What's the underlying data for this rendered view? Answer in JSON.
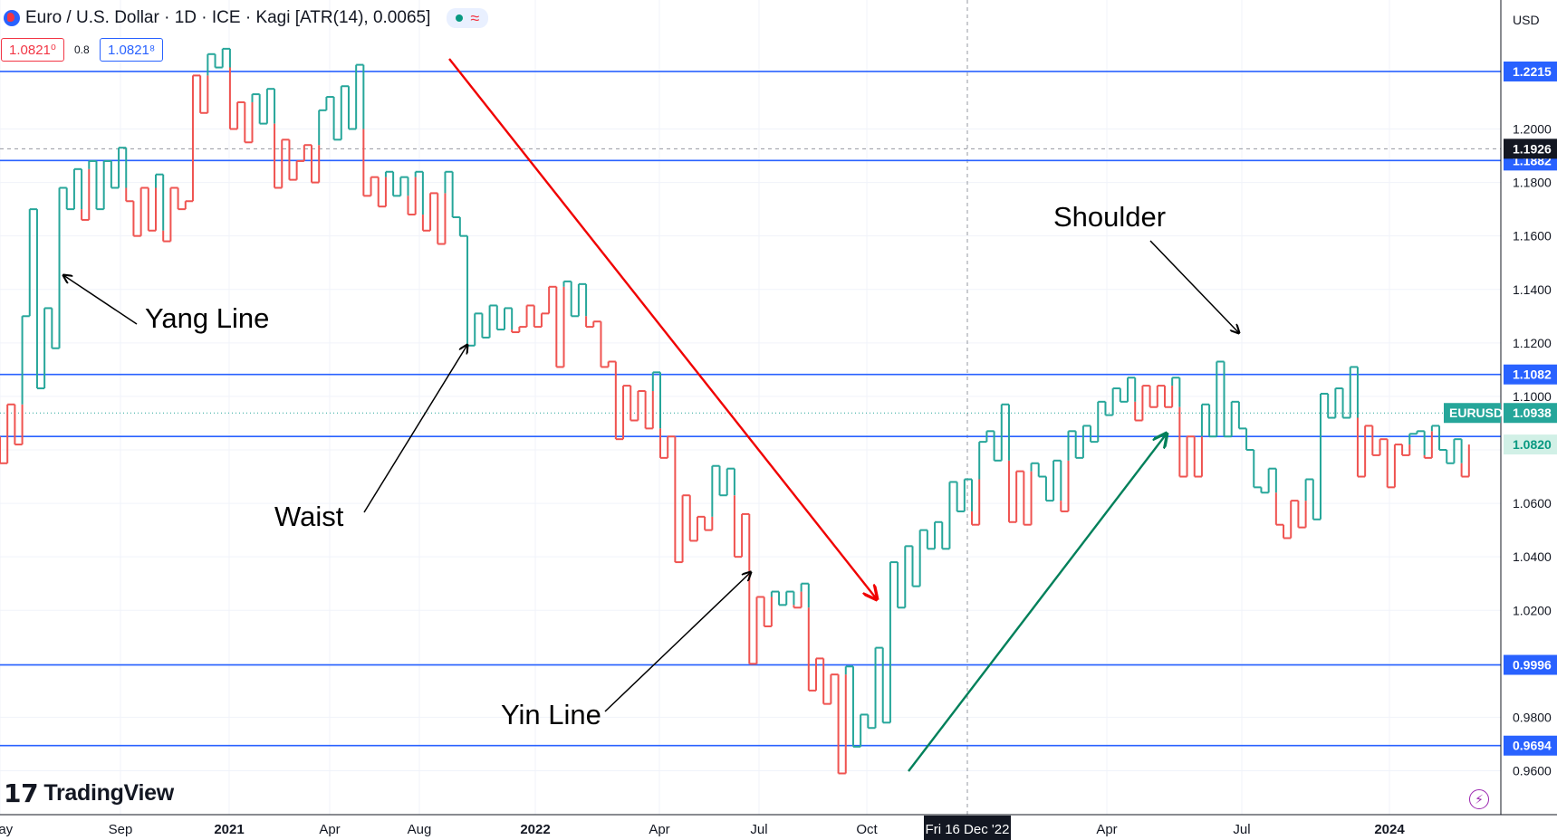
{
  "header": {
    "symbol_title": "Euro / U.S. Dollar · 1D · ICE · Kagi [ATR(14), 0.0065]",
    "approx_glyph": "≈",
    "sell_price": "1.0821⁰",
    "spread": "0.8",
    "buy_price": "1.0821⁸"
  },
  "brand": {
    "name": "TradingView",
    "mark": "17"
  },
  "colors": {
    "yang": "#26a69a",
    "yin": "#ef5350",
    "level": "#2962ff",
    "down_arrow": "#f00000",
    "up_arrow": "#00805a",
    "axis_text": "#131722",
    "grid": "#f0f3fa"
  },
  "chart_data": {
    "type": "kagi",
    "currency_label": "USD",
    "ylim": [
      0.95,
      1.235
    ],
    "y_ticks": [
      0.96,
      0.98,
      1.0,
      1.02,
      1.04,
      1.06,
      1.08,
      1.1,
      1.12,
      1.14,
      1.16,
      1.18,
      1.2
    ],
    "y_tick_labels": [
      "0.9600",
      "0.9800",
      "1.0000",
      "1.0200",
      "1.0400",
      "1.0600",
      "1.0800",
      "1.1000",
      "1.1200",
      "1.1400",
      "1.1600",
      "1.1800",
      "1.2000"
    ],
    "x_labels": [
      "May",
      "Sep",
      "2021",
      "Apr",
      "Aug",
      "2022",
      "Apr",
      "Jul",
      "Oct",
      "Apr",
      "Jul",
      "2024"
    ],
    "x_labels_bold": [
      false,
      false,
      true,
      false,
      false,
      true,
      false,
      false,
      false,
      false,
      false,
      true
    ],
    "crosshair_date": "Fri 16 Dec '22",
    "crosshair_price": "1.1926",
    "horizontal_levels": [
      1.2215,
      1.1882,
      1.1082,
      1.085,
      0.9996,
      0.9694
    ],
    "level_labels": [
      "1.2215",
      "1.1882",
      "1.1082",
      "",
      "0.9996",
      "0.9694"
    ],
    "last_price": {
      "symbol": "EURUSD",
      "value": "1.0938",
      "y": 1.0938
    },
    "bid_price": {
      "value": "1.0820",
      "y": 1.082
    },
    "kagi_values": [
      1.085,
      1.075,
      1.097,
      1.082,
      1.13,
      1.17,
      1.103,
      1.133,
      1.118,
      1.178,
      1.17,
      1.185,
      1.166,
      1.188,
      1.17,
      1.188,
      1.178,
      1.193,
      1.173,
      1.16,
      1.178,
      1.162,
      1.183,
      1.158,
      1.178,
      1.17,
      1.173,
      1.22,
      1.206,
      1.228,
      1.223,
      1.23,
      1.2,
      1.21,
      1.195,
      1.213,
      1.202,
      1.215,
      1.178,
      1.196,
      1.181,
      1.188,
      1.194,
      1.18,
      1.207,
      1.212,
      1.196,
      1.216,
      1.2,
      1.224,
      1.175,
      1.182,
      1.171,
      1.184,
      1.175,
      1.182,
      1.168,
      1.184,
      1.162,
      1.176,
      1.157,
      1.184,
      1.167,
      1.16,
      1.119,
      1.131,
      1.122,
      1.134,
      1.125,
      1.133,
      1.124,
      1.126,
      1.134,
      1.126,
      1.131,
      1.141,
      1.111,
      1.143,
      1.13,
      1.142,
      1.126,
      1.128,
      1.111,
      1.113,
      1.084,
      1.104,
      1.091,
      1.102,
      1.088,
      1.109,
      1.077,
      1.085,
      1.038,
      1.063,
      1.046,
      1.055,
      1.05,
      1.074,
      1.063,
      1.073,
      1.04,
      1.056,
      1.0,
      1.025,
      1.014,
      1.027,
      1.022,
      1.027,
      1.021,
      1.03,
      0.99,
      1.002,
      0.985,
      0.996,
      0.959,
      0.999,
      0.969,
      0.981,
      0.976,
      1.006,
      0.978,
      1.038,
      1.021,
      1.044,
      1.029,
      1.05,
      1.043,
      1.053,
      1.043,
      1.068,
      1.057,
      1.069,
      1.052,
      1.083,
      1.087,
      1.076,
      1.097,
      1.053,
      1.072,
      1.052,
      1.075,
      1.07,
      1.061,
      1.076,
      1.057,
      1.087,
      1.077,
      1.089,
      1.083,
      1.098,
      1.093,
      1.103,
      1.098,
      1.107,
      1.091,
      1.104,
      1.096,
      1.104,
      1.096,
      1.107,
      1.07,
      1.085,
      1.07,
      1.097,
      1.085,
      1.113,
      1.085,
      1.098,
      1.088,
      1.08,
      1.066,
      1.064,
      1.073,
      1.052,
      1.047,
      1.061,
      1.051,
      1.069,
      1.054,
      1.101,
      1.092,
      1.103,
      1.092,
      1.111,
      1.07,
      1.089,
      1.078,
      1.084,
      1.066,
      1.082,
      1.078,
      1.086,
      1.087,
      1.077,
      1.089,
      1.08,
      1.075,
      1.084,
      1.07,
      1.082
    ]
  },
  "annotations": [
    {
      "label": "Yang Line"
    },
    {
      "label": "Waist"
    },
    {
      "label": "Yin Line"
    },
    {
      "label": "Shoulder"
    }
  ]
}
